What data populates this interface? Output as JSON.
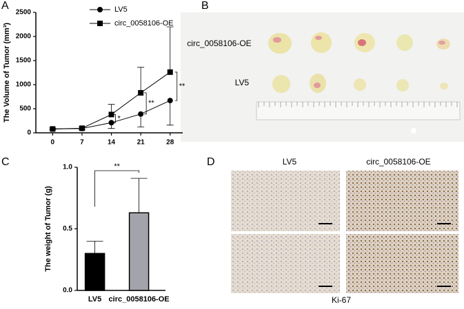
{
  "panel_labels": [
    "A",
    "B",
    "C",
    "D"
  ],
  "chart_data": [
    {
      "type": "line",
      "x": [
        0,
        7,
        14,
        21,
        28
      ],
      "xlim": [
        -4,
        31
      ],
      "xticks": [
        0,
        7,
        14,
        21,
        28
      ],
      "ylim": [
        0,
        2500
      ],
      "yticks": [
        0,
        500,
        1000,
        1500,
        2000,
        2500
      ],
      "ylabel": "The Volume of Tumor (mm³)",
      "legend": "top-left",
      "series": [
        {
          "name": "LV5",
          "color": "#000000",
          "marker": "circle",
          "values": [
            80,
            90,
            210,
            390,
            670
          ],
          "errors": [
            20,
            25,
            120,
            270,
            510
          ]
        },
        {
          "name": "circ_0058106-OE",
          "color": "#000000",
          "marker": "square",
          "values": [
            80,
            95,
            380,
            830,
            1260
          ],
          "errors": [
            20,
            25,
            210,
            530,
            940
          ]
        }
      ],
      "annotations": [
        "*",
        "**",
        "**"
      ]
    },
    {
      "type": "bar",
      "categories": [
        "LV5",
        "circ_0058106-OE"
      ],
      "values": [
        0.3,
        0.63
      ],
      "errors": [
        0.1,
        0.28
      ],
      "colors": [
        "#000000",
        "#a3a3ab"
      ],
      "ylim": [
        0,
        1.0
      ],
      "yticks": [
        {
          "value": 0,
          "label": "0.0"
        },
        {
          "value": 0.5,
          "label": "0.5"
        },
        {
          "value": 1.0,
          "label": "1.0"
        }
      ],
      "ylabel": "The weight of Tumor (g)",
      "annotations": [
        "**"
      ]
    }
  ],
  "photo_b": {
    "row_labels": [
      "circ_0058106-OE",
      "LV5"
    ]
  },
  "photo_d": {
    "column_labels": [
      "LV5",
      "circ_0058106-OE"
    ],
    "caption": "Ki-67"
  }
}
